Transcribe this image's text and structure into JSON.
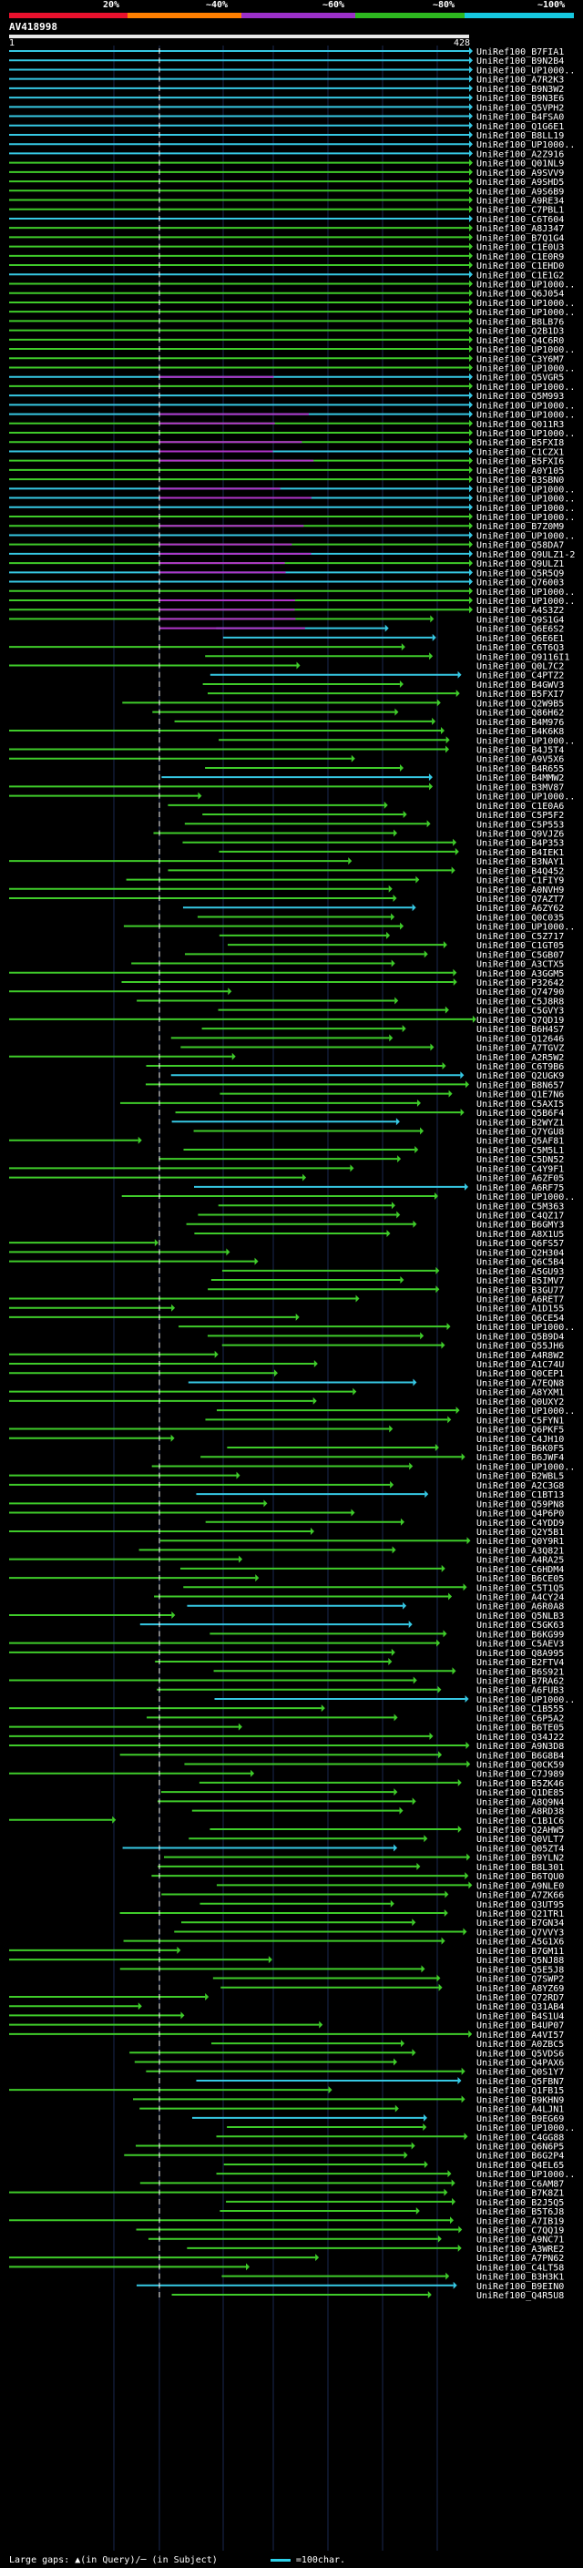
{
  "color_scale": {
    "labels": [
      "20%",
      "~40%",
      "~60%",
      "~80%",
      "~100%"
    ],
    "colors": [
      "#e8112d",
      "#ff7f00",
      "#9b30c8",
      "#2db81f",
      "#16c8e0"
    ]
  },
  "query": {
    "title": "AV418998",
    "start": "1",
    "end": "428"
  },
  "hits": [
    "UniRef100_B7FIA1",
    "UniRef100_B9N2B4",
    "UniRef100_UP1000..",
    "UniRef100_A7R2K3",
    "UniRef100_B9N3W2",
    "UniRef100_B9N3E6",
    "UniRef100_Q5VPH2",
    "UniRef100_B4FSA0",
    "UniRef100_Q1G6E1",
    "UniRef100_B8LL19",
    "UniRef100_UP1000..",
    "UniRef100_A2Z916",
    "UniRef100_Q01NL9",
    "UniRef100_A9SVV9",
    "UniRef100_A9SHD5",
    "UniRef100_A9S6B9",
    "UniRef100_A9RE34",
    "UniRef100_C7PBL1",
    "UniRef100_C6T604",
    "UniRef100_A8J347",
    "UniRef100_B7Q1G4",
    "UniRef100_C1E0U3",
    "UniRef100_C1E0R9",
    "UniRef100_C1EHD0",
    "UniRef100_C1E1G2",
    "UniRef100_UP1000..",
    "UniRef100_Q6J054",
    "UniRef100_UP1000..",
    "UniRef100_UP1000..",
    "UniRef100_B8LB76",
    "UniRef100_Q2B1D3",
    "UniRef100_Q4C6R0",
    "UniRef100_UP1000..",
    "UniRef100_C3Y6M7",
    "UniRef100_UP1000..",
    "UniRef100_Q5VGR5",
    "UniRef100_UP1000..",
    "UniRef100_Q5M993",
    "UniRef100_UP1000..",
    "UniRef100_UP1000..",
    "UniRef100_Q011R3",
    "UniRef100_UP1000..",
    "UniRef100_B5FXI8",
    "UniRef100_C1CZX1",
    "UniRef100_B5FXI6",
    "UniRef100_A0Y105",
    "UniRef100_B3SBN0",
    "UniRef100_UP1000..",
    "UniRef100_UP1000..",
    "UniRef100_UP1000..",
    "UniRef100_UP1000..",
    "UniRef100_B7Z0M9",
    "UniRef100_UP1000..",
    "UniRef100_Q58DA7",
    "UniRef100_Q9ULZ1-2",
    "UniRef100_Q9ULZ1",
    "UniRef100_Q5R5Q9",
    "UniRef100_Q76003",
    "UniRef100_UP1000..",
    "UniRef100_UP1000..",
    "UniRef100_A4S3Z2",
    "UniRef100_Q9S1G4",
    "UniRef100_Q6E6S2",
    "UniRef100_Q6E6E1",
    "UniRef100_C6T6Q3",
    "UniRef100_Q9116I1",
    "UniRef100_Q0L7C2",
    "UniRef100_C4PTZ2",
    "UniRef100_B4GWV3",
    "UniRef100_B5FXI7",
    "UniRef100_Q2W9B5",
    "UniRef100_Q86H62",
    "UniRef100_B4M976",
    "UniRef100_B4K6K8",
    "UniRef100_UP1000..",
    "UniRef100_B4J5T4",
    "UniRef100_A9V5X6",
    "UniRef100_B4R655",
    "UniRef100_B4MMW2",
    "UniRef100_B3MV87",
    "UniRef100_UP1000..",
    "UniRef100_C1E0A6",
    "UniRef100_C5P5F2",
    "UniRef100_C5P553",
    "UniRef100_Q9VJZ6",
    "UniRef100_B4P353",
    "UniRef100_B4IEK1",
    "UniRef100_B3NAY1",
    "UniRef100_B4Q452",
    "UniRef100_C1FIY9",
    "UniRef100_A0NVH9",
    "UniRef100_Q7AZT7",
    "UniRef100_A6ZY62",
    "UniRef100_Q0C035",
    "UniRef100_UP1000..",
    "UniRef100_C5Z717",
    "UniRef100_C1GT05",
    "UniRef100_C5GB07",
    "UniRef100_A3CTX5",
    "UniRef100_A3GGM5",
    "UniRef100_P32642",
    "UniRef100_Q74790",
    "UniRef100_C5J8R8",
    "UniRef100_C5GVY3",
    "UniRef100_Q7QD19",
    "UniRef100_B6H4S7",
    "UniRef100_Q12646",
    "UniRef100_A7TGVZ",
    "UniRef100_A2R5W2",
    "UniRef100_C6T9B6",
    "UniRef100_Q2UGK9",
    "UniRef100_B8N657",
    "UniRef100_Q1E7N6",
    "UniRef100_C5AXI5",
    "UniRef100_Q5B6F4",
    "UniRef100_B2WYZ1",
    "UniRef100_Q7YGU8",
    "UniRef100_Q5AF81",
    "UniRef100_C5M5L1",
    "UniRef100_C5DN52",
    "UniRef100_C4Y9F1",
    "UniRef100_A6ZF05",
    "UniRef100_A6RF75",
    "UniRef100_UP1000..",
    "UniRef100_C5M363",
    "UniRef100_C4QZ17",
    "UniRef100_B6GMY3",
    "UniRef100_A8X1U5",
    "UniRef100_Q6FS57",
    "UniRef100_Q2H304",
    "UniRef100_Q6C5B4",
    "UniRef100_A5GU93",
    "UniRef100_B5IMV7",
    "UniRef100_B3GU77",
    "UniRef100_A6RET7",
    "UniRef100_A1D155",
    "UniRef100_Q6CE54",
    "UniRef100_UP1000..",
    "UniRef100_Q5B9D4",
    "UniRef100_Q55JH6",
    "UniRef100_A4R8W2",
    "UniRef100_A1C74U",
    "UniRef100_Q0CEP1",
    "UniRef100_A7EQN8",
    "UniRef100_A8YXM1",
    "UniRef100_Q0UXY2",
    "UniRef100_UP1000..",
    "UniRef100_C5FYN1",
    "UniRef100_Q6PKF5",
    "UniRef100_C4JH10",
    "UniRef100_B6K0F5",
    "UniRef100_B6JWF4",
    "UniRef100_UP1000..",
    "UniRef100_B2WBL5",
    "UniRef100_A2C3G8",
    "UniRef100_C1BT13",
    "UniRef100_Q59PN8",
    "UniRef100_Q4P6P0",
    "UniRef100_C4YDD9",
    "UniRef100_Q2Y5B1",
    "UniRef100_Q0Y9R1",
    "UniRef100_A3Q821",
    "UniRef100_A4RA25",
    "UniRef100_C6HDM4",
    "UniRef100_B6CE05",
    "UniRef100_C5T1Q5",
    "UniRef100_A4CY24",
    "UniRef100_A6R0A8",
    "UniRef100_Q5NLB3",
    "UniRef100_C5GK63",
    "UniRef100_B6KG99",
    "UniRef100_C5AEV3",
    "UniRef100_Q8A995",
    "UniRef100_B2FTV4",
    "UniRef100_B6S921",
    "UniRef100_B7RA62",
    "UniRef100_A6FUB3",
    "UniRef100_UP1000..",
    "UniRef100_C1B555",
    "UniRef100_C6P5A2",
    "UniRef100_B6TE05",
    "UniRef100_Q34J22",
    "UniRef100_A9N3D8",
    "UniRef100_B6G8B4",
    "UniRef100_Q0CK59",
    "UniRef100_C7J989",
    "UniRef100_B5ZK46",
    "UniRef100_Q1DE85",
    "UniRef100_A8Q9N4",
    "UniRef100_A8RD38",
    "UniRef100_C1B1C6",
    "UniRef100_Q2AHW5",
    "UniRef100_Q0VLT7",
    "UniRef100_Q05ZT4",
    "UniRef100_B9YLN2",
    "UniRef100_B8L301",
    "UniRef100_B6TQU0",
    "UniRef100_A9NLE0",
    "UniRef100_A7ZK66",
    "UniRef100_Q3UT95",
    "UniRef100_Q21TR1",
    "UniRef100_B7GN34",
    "UniRef100_Q7VVY3",
    "UniRef100_A5G1X6",
    "UniRef100_B7GM11",
    "UniRef100_Q5NJ88",
    "UniRef100_Q5E5J8",
    "UniRef100_Q7SWP2",
    "UniRef100_A8YZ69",
    "UniRef100_Q72RD7",
    "UniRef100_Q31AB4",
    "UniRef100_B4S1U4",
    "UniRef100_B4UP07",
    "UniRef100_A4VI57",
    "UniRef100_A0ZBC5",
    "UniRef100_Q5VDS6",
    "UniRef100_Q4PAX6",
    "UniRef100_Q0S1Y7",
    "UniRef100_Q5FBN7",
    "UniRef100_Q1FB15",
    "UniRef100_B9KHN9",
    "UniRef100_A4LJN1",
    "UniRef100_B9EG69",
    "UniRef100_UP1000..",
    "UniRef100_C4GG88",
    "UniRef100_Q6N6P5",
    "UniRef100_B6G2P4",
    "UniRef100_Q4EL65",
    "UniRef100_UP1000..",
    "UniRef100_C6AM87",
    "UniRef100_B7K8Z1",
    "UniRef100_B2J5Q5",
    "UniRef100_B5T6J8",
    "UniRef100_A7IB19",
    "UniRef100_C7QQ19",
    "UniRef100_A9NC71",
    "UniRef100_A3WRE2",
    "UniRef100_A7PN62",
    "UniRef100_C4LT58",
    "UniRef100_B3H3K1",
    "UniRef100_B9EIN0",
    "UniRef100_Q4R5U8"
  ],
  "footer": {
    "gaps_text": "Large gaps: ▲(in Query)/─ (in Subject)",
    "legend_text": "=100char."
  }
}
